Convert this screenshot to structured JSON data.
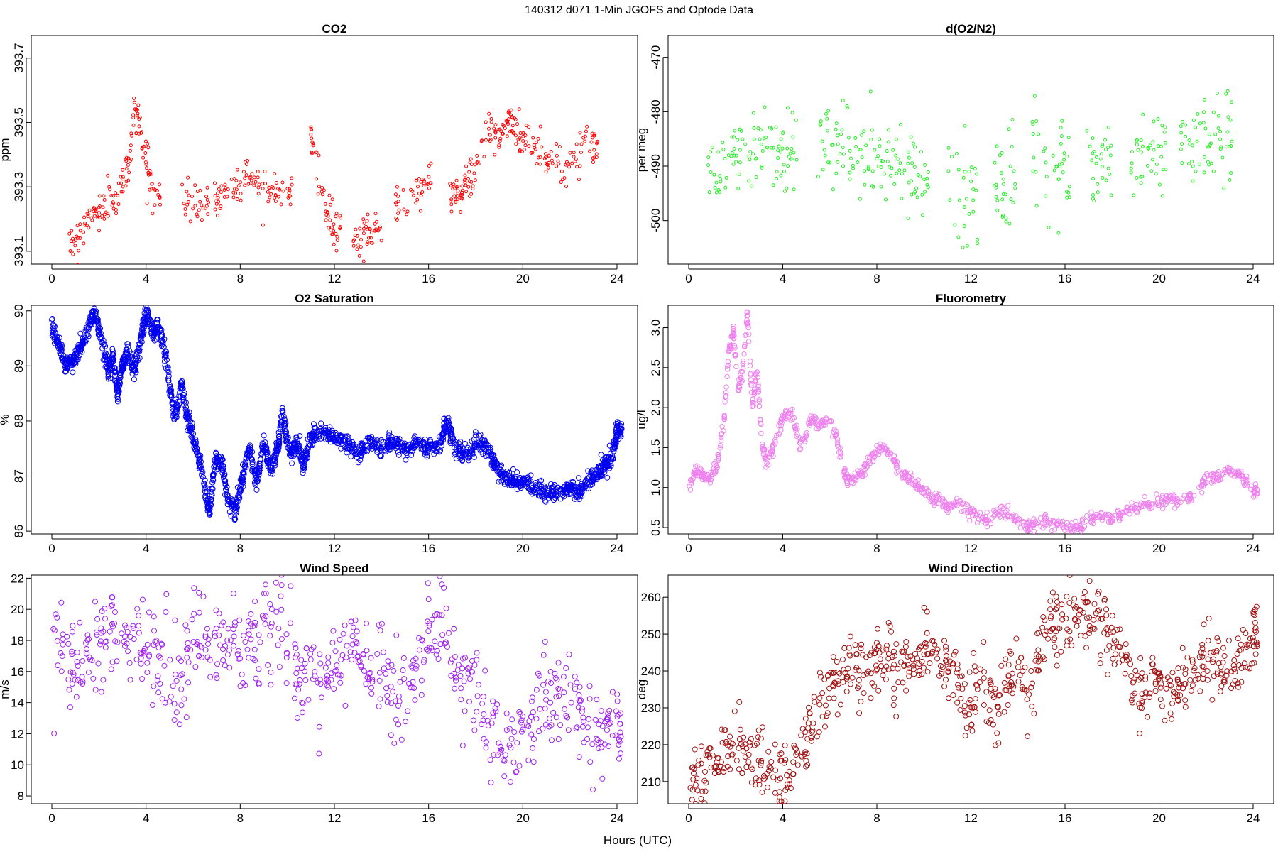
{
  "page": {
    "title": "140312   d071   1-Min  JGOFS and Optode Data",
    "xlabel": "Hours (UTC)"
  },
  "chart_data": [
    {
      "id": "co2",
      "type": "scatter",
      "title": "CO2",
      "ylabel": "ppm",
      "color": "#ff0000",
      "xlim": [
        0,
        24
      ],
      "ylim": [
        393.06,
        393.77
      ],
      "xticks": [
        0,
        4,
        8,
        12,
        16,
        20,
        24
      ],
      "yticks": [
        393.1,
        393.3,
        393.5,
        393.7
      ],
      "ytick_labels": [
        "393.1",
        "393.3",
        "393.5",
        "393.7"
      ],
      "ytick_rotate": true,
      "x": [
        0.7,
        1.0,
        1.3,
        1.6,
        1.9,
        2.2,
        2.5,
        2.8,
        3.1,
        3.3,
        3.5,
        3.7,
        3.9,
        4.1,
        4.3,
        5.5,
        5.9,
        6.3,
        6.7,
        7.1,
        7.5,
        7.9,
        8.3,
        8.7,
        9.1,
        9.5,
        9.9,
        11.0,
        11.1,
        11.6,
        11.8,
        12.0,
        12.8,
        13.1,
        13.4,
        13.7,
        14.6,
        14.9,
        15.5,
        15.8,
        16.9,
        17.1,
        17.3,
        17.5,
        17.7,
        17.9,
        18.4,
        18.7,
        19.0,
        19.3,
        19.5,
        19.7,
        19.9,
        20.2,
        20.6,
        21.0,
        21.4,
        21.8,
        22.2,
        22.6,
        23.0
      ],
      "y": [
        393.11,
        393.14,
        393.17,
        393.2,
        393.22,
        393.24,
        393.25,
        393.27,
        393.32,
        393.4,
        393.55,
        393.5,
        393.42,
        393.35,
        393.28,
        393.28,
        393.25,
        393.24,
        393.26,
        393.27,
        393.29,
        393.31,
        393.34,
        393.32,
        393.3,
        393.3,
        393.29,
        393.46,
        393.44,
        393.22,
        393.2,
        393.16,
        393.13,
        393.14,
        393.16,
        393.17,
        393.25,
        393.26,
        393.29,
        393.31,
        393.3,
        393.28,
        393.27,
        393.3,
        393.32,
        393.35,
        393.44,
        393.47,
        393.45,
        393.5,
        393.49,
        393.48,
        393.46,
        393.45,
        393.42,
        393.38,
        393.4,
        393.36,
        393.38,
        393.42,
        393.44
      ]
    },
    {
      "id": "o2n2",
      "type": "scatter",
      "title": "d(O2/N2)",
      "ylabel": "per meg",
      "color": "#22ee22",
      "xlim": [
        0,
        24
      ],
      "ylim": [
        -508,
        -466
      ],
      "xticks": [
        0,
        4,
        8,
        12,
        16,
        20,
        24
      ],
      "yticks": [
        -500,
        -490,
        -480,
        -470
      ],
      "ytick_labels": [
        "-500",
        "-490",
        "-480",
        "-470"
      ],
      "ytick_rotate": true,
      "x": [
        0.8,
        1.2,
        1.6,
        2.0,
        2.4,
        2.8,
        3.2,
        3.6,
        4.0,
        4.3,
        5.5,
        5.9,
        6.3,
        6.7,
        7.1,
        7.5,
        7.9,
        8.3,
        8.7,
        9.1,
        9.5,
        9.9,
        11.0,
        11.6,
        12.0,
        12.9,
        13.3,
        13.6,
        14.6,
        15.0,
        15.7,
        15.9,
        16.9,
        17.3,
        17.7,
        18.8,
        19.2,
        19.6,
        20.0,
        20.9,
        21.3,
        21.7,
        22.1,
        22.5,
        22.9
      ],
      "y": [
        -488,
        -491,
        -490,
        -487,
        -489,
        -486,
        -487,
        -485,
        -488,
        -487,
        -485,
        -484,
        -485,
        -487,
        -488,
        -489,
        -489,
        -490,
        -489,
        -491,
        -490,
        -492,
        -494,
        -495,
        -494,
        -494,
        -492,
        -493,
        -489,
        -491,
        -490,
        -492,
        -490,
        -491,
        -489,
        -489,
        -488,
        -488,
        -487,
        -487,
        -486,
        -487,
        -485,
        -484,
        -486
      ]
    },
    {
      "id": "o2sat",
      "type": "scatter",
      "title": "O2 Saturation",
      "ylabel": "%",
      "color": "#0000ee",
      "xlim": [
        0,
        24
      ],
      "ylim": [
        85.95,
        90.1
      ],
      "xticks": [
        0,
        4,
        8,
        12,
        16,
        20,
        24
      ],
      "yticks": [
        86,
        87,
        88,
        89,
        90
      ],
      "ytick_labels": [
        "86",
        "87",
        "88",
        "89",
        "90"
      ],
      "ytick_rotate": true,
      "x": [
        0,
        0.3,
        0.6,
        0.9,
        1.2,
        1.5,
        1.8,
        2.1,
        2.4,
        2.6,
        2.8,
        3.0,
        3.2,
        3.5,
        3.8,
        4.0,
        4.3,
        4.6,
        4.9,
        5.2,
        5.5,
        5.8,
        6.1,
        6.4,
        6.7,
        6.9,
        7.2,
        7.5,
        7.8,
        8.1,
        8.4,
        8.7,
        9.0,
        9.3,
        9.6,
        9.8,
        10.1,
        10.4,
        10.7,
        11.0,
        11.5,
        12.0,
        12.5,
        13.0,
        13.5,
        14.0,
        14.5,
        15.0,
        15.5,
        16.0,
        16.5,
        16.8,
        17.1,
        17.5,
        18.0,
        18.5,
        18.8,
        19.2,
        19.6,
        20.0,
        20.5,
        21.0,
        21.5,
        22.0,
        22.4,
        22.8,
        23.2,
        23.5,
        23.8,
        24
      ],
      "y": [
        89.7,
        89.4,
        89.0,
        89.1,
        89.3,
        89.6,
        90.0,
        89.5,
        88.9,
        89.2,
        88.5,
        89.0,
        89.3,
        88.9,
        89.5,
        90.0,
        89.6,
        89.7,
        89.0,
        88.0,
        88.7,
        88.0,
        87.6,
        87.0,
        86.3,
        87.2,
        87.3,
        86.5,
        86.4,
        87.0,
        87.5,
        86.9,
        87.6,
        87.1,
        87.5,
        88.2,
        87.4,
        87.6,
        87.2,
        87.7,
        87.8,
        87.7,
        87.6,
        87.4,
        87.6,
        87.5,
        87.6,
        87.5,
        87.6,
        87.5,
        87.6,
        88.0,
        87.5,
        87.4,
        87.6,
        87.5,
        87.2,
        87.0,
        86.9,
        86.9,
        86.8,
        86.7,
        86.7,
        86.8,
        86.7,
        86.9,
        87.1,
        87.2,
        87.3,
        87.8
      ]
    },
    {
      "id": "fluor",
      "type": "scatter",
      "title": "Fluorometry",
      "ylabel": "ug/l",
      "color": "#ee82ee",
      "xlim": [
        0,
        24
      ],
      "ylim": [
        0.42,
        3.28
      ],
      "xticks": [
        0,
        4,
        8,
        12,
        16,
        20,
        24
      ],
      "yticks": [
        0.5,
        1.0,
        1.5,
        2.0,
        2.5,
        3.0
      ],
      "ytick_labels": [
        "0.5",
        "1.0",
        "1.5",
        "2.0",
        "2.5",
        "3.0"
      ],
      "ytick_rotate": true,
      "x": [
        0,
        0.3,
        0.6,
        0.9,
        1.2,
        1.5,
        1.7,
        1.9,
        2.1,
        2.3,
        2.5,
        2.7,
        2.9,
        3.1,
        3.3,
        3.6,
        4.0,
        4.4,
        4.8,
        5.2,
        5.6,
        6.0,
        6.4,
        6.7,
        7.0,
        7.4,
        7.8,
        8.2,
        8.6,
        9.0,
        9.4,
        9.8,
        10.2,
        10.6,
        11.0,
        11.5,
        12.0,
        12.5,
        13.0,
        13.5,
        14.0,
        14.5,
        15.0,
        15.5,
        16.0,
        16.5,
        17.0,
        17.5,
        18.0,
        18.5,
        19.0,
        19.5,
        20.0,
        20.5,
        21.0,
        21.5,
        22.0,
        22.5,
        23.0,
        23.5,
        24
      ],
      "y": [
        1.0,
        1.2,
        1.15,
        1.1,
        1.3,
        1.8,
        2.7,
        2.95,
        2.2,
        2.5,
        3.2,
        2.0,
        2.5,
        1.6,
        1.3,
        1.5,
        1.9,
        1.9,
        1.5,
        1.85,
        1.8,
        1.85,
        1.5,
        1.1,
        1.1,
        1.2,
        1.4,
        1.5,
        1.4,
        1.2,
        1.1,
        1.0,
        0.9,
        0.85,
        0.75,
        0.8,
        0.7,
        0.6,
        0.65,
        0.7,
        0.55,
        0.5,
        0.6,
        0.55,
        0.5,
        0.48,
        0.6,
        0.65,
        0.6,
        0.7,
        0.75,
        0.8,
        0.8,
        0.85,
        0.8,
        0.9,
        1.1,
        1.15,
        1.2,
        1.15,
        0.95
      ]
    },
    {
      "id": "wspd",
      "type": "scatter",
      "title": "Wind Speed",
      "ylabel": "m/s",
      "color": "#a020f0",
      "xlim": [
        0,
        24
      ],
      "ylim": [
        7.5,
        22.2
      ],
      "xticks": [
        0,
        4,
        8,
        12,
        16,
        20,
        24
      ],
      "yticks": [
        8,
        10,
        12,
        14,
        16,
        18,
        20,
        22
      ],
      "ytick_labels": [
        "8",
        "10",
        "12",
        "14",
        "16",
        "18",
        "20",
        "22"
      ],
      "ytick_rotate": false,
      "x": [
        0,
        0.5,
        1.0,
        1.5,
        2.0,
        2.5,
        3.0,
        3.5,
        4.0,
        4.5,
        5.0,
        5.5,
        6.0,
        6.5,
        7.0,
        7.5,
        8.0,
        8.5,
        9.0,
        9.5,
        10.0,
        10.5,
        11.0,
        11.5,
        12.0,
        12.5,
        13.0,
        13.5,
        14.0,
        14.5,
        15.0,
        15.5,
        16.0,
        16.5,
        17.0,
        17.5,
        18.0,
        18.5,
        19.0,
        19.5,
        20.0,
        20.5,
        21.0,
        21.5,
        22.0,
        22.5,
        23.0,
        23.5,
        24
      ],
      "y": [
        17.2,
        17.0,
        16.0,
        16.5,
        17.8,
        18.0,
        18.2,
        17.5,
        18.0,
        17.5,
        16.5,
        15.0,
        18.5,
        17.5,
        17.0,
        17.8,
        17.2,
        18.0,
        19.0,
        19.5,
        18.5,
        15.0,
        16.0,
        15.5,
        16.0,
        17.0,
        17.5,
        15.5,
        17.0,
        15.0,
        14.5,
        16.5,
        18.5,
        19.5,
        17.0,
        16.0,
        15.5,
        12.5,
        11.5,
        11.0,
        12.5,
        13.5,
        14.0,
        13.5,
        14.0,
        13.0,
        11.0,
        12.5,
        12.0
      ]
    },
    {
      "id": "wdir",
      "type": "scatter",
      "title": "Wind Direction",
      "ylabel": "deg",
      "color": "#a01010",
      "xlim": [
        0,
        24
      ],
      "ylim": [
        204,
        266
      ],
      "xticks": [
        0,
        4,
        8,
        12,
        16,
        20,
        24
      ],
      "yticks": [
        210,
        220,
        230,
        240,
        250,
        260
      ],
      "ytick_labels": [
        "210",
        "220",
        "230",
        "240",
        "250",
        "260"
      ],
      "ytick_rotate": false,
      "x": [
        0,
        0.5,
        1.0,
        1.5,
        2.0,
        2.5,
        3.0,
        3.5,
        4.0,
        4.5,
        5.0,
        5.5,
        6.0,
        6.5,
        7.0,
        7.5,
        8.0,
        8.5,
        9.0,
        9.5,
        10.0,
        10.5,
        11.0,
        11.5,
        12.0,
        12.5,
        13.0,
        13.5,
        14.0,
        14.5,
        15.0,
        15.5,
        16.0,
        16.5,
        17.0,
        17.5,
        18.0,
        18.5,
        19.0,
        19.5,
        20.0,
        20.5,
        21.0,
        21.5,
        22.0,
        22.5,
        23.0,
        23.5,
        24
      ],
      "y": [
        208,
        211,
        213,
        216,
        220,
        218,
        215,
        212,
        211,
        215,
        220,
        230,
        236,
        238,
        240,
        241,
        242,
        243,
        241,
        242,
        246,
        243,
        240,
        236,
        230,
        237,
        228,
        235,
        240,
        234,
        250,
        252,
        253,
        255,
        257,
        252,
        250,
        245,
        234,
        235,
        238,
        232,
        240,
        238,
        246,
        242,
        237,
        244,
        249
      ]
    }
  ]
}
